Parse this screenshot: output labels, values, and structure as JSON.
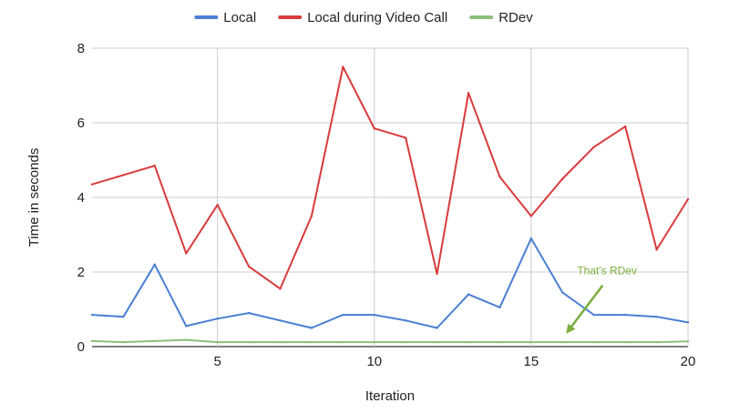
{
  "chart_data": {
    "type": "line",
    "xlabel": "Iteration",
    "ylabel": "Time in seconds",
    "x": [
      1,
      2,
      3,
      4,
      5,
      6,
      7,
      8,
      9,
      10,
      11,
      12,
      13,
      14,
      15,
      16,
      17,
      18,
      19,
      20
    ],
    "xlim": [
      1,
      20
    ],
    "ylim": [
      0,
      8
    ],
    "x_ticks": [
      5,
      10,
      15,
      20
    ],
    "y_ticks": [
      0,
      2,
      4,
      6,
      8
    ],
    "grid": true,
    "legend_position": "top",
    "series": [
      {
        "name": "Local",
        "color": "#4a7fd4",
        "values": [
          0.85,
          0.8,
          2.2,
          0.55,
          0.75,
          0.9,
          0.7,
          0.5,
          0.85,
          0.85,
          0.7,
          0.5,
          1.4,
          1.05,
          2.9,
          1.45,
          0.85,
          0.85,
          0.8,
          0.65
        ]
      },
      {
        "name": "Local during Video Call",
        "color": "#d93b3b",
        "values": [
          4.35,
          4.6,
          4.85,
          2.5,
          3.8,
          2.15,
          1.55,
          3.5,
          7.5,
          5.85,
          5.6,
          1.95,
          6.8,
          4.55,
          3.5,
          4.5,
          5.35,
          5.9,
          2.6,
          3.95
        ]
      },
      {
        "name": "RDev",
        "color": "#8cbf7a",
        "values": [
          0.15,
          0.12,
          0.15,
          0.18,
          0.12,
          0.12,
          0.12,
          0.12,
          0.12,
          0.12,
          0.12,
          0.12,
          0.12,
          0.12,
          0.12,
          0.12,
          0.12,
          0.12,
          0.12,
          0.14
        ]
      }
    ],
    "annotations": [
      {
        "text": "That's RDev",
        "color": "#7aaf3c",
        "x": 16,
        "y": 0.3
      }
    ]
  }
}
